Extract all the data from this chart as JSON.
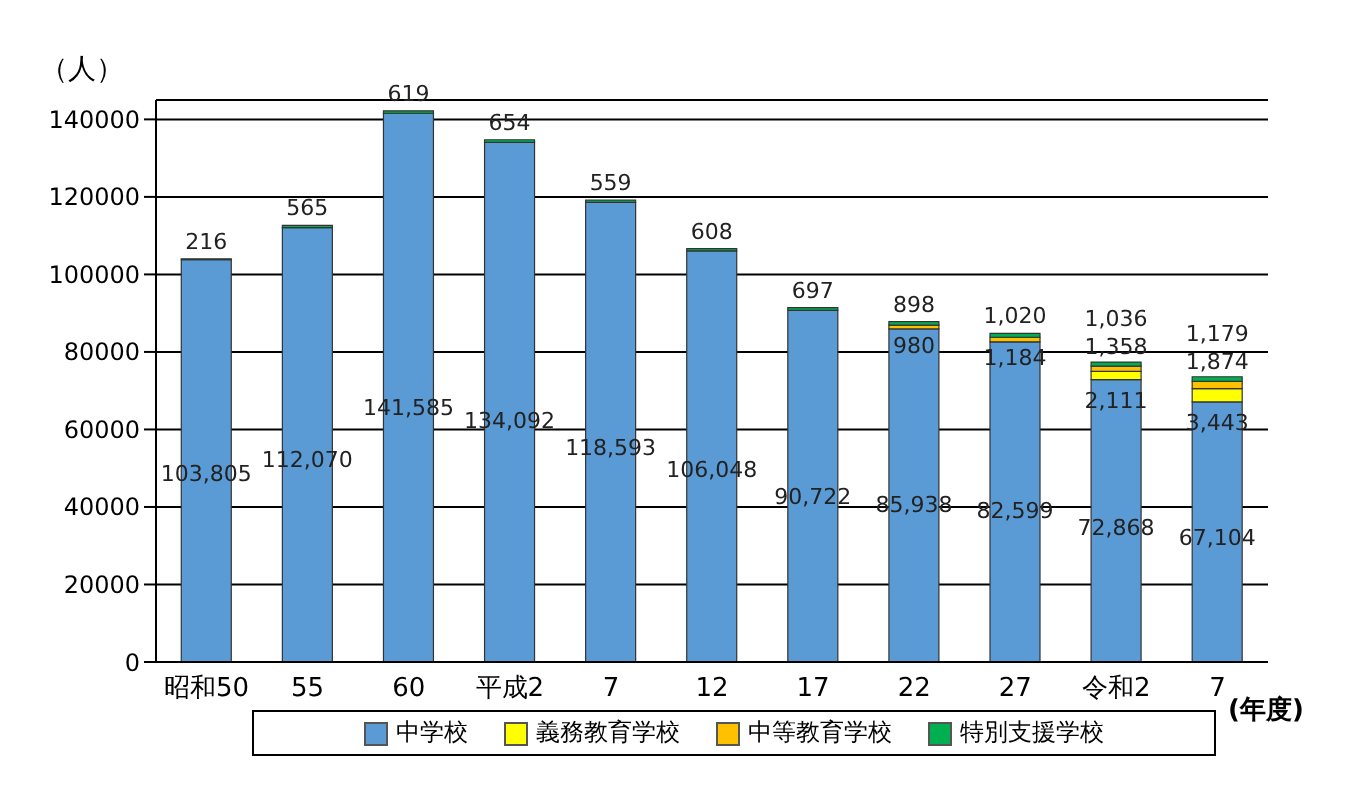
{
  "chart_data": {
    "type": "bar",
    "stacked": true,
    "ylabel": "（人）",
    "annotations": [
      "(年度)"
    ],
    "categories": [
      "昭和50",
      "55",
      "60",
      "平成2",
      "7",
      "12",
      "17",
      "22",
      "27",
      "令和2",
      "7"
    ],
    "series": [
      {
        "name": "中学校",
        "color": "#5b9bd5",
        "values": [
          103805,
          112070,
          141585,
          134092,
          118593,
          106048,
          90722,
          85938,
          82599,
          72868,
          67104
        ],
        "value_labels": [
          "103,805",
          "112,070",
          "141,585",
          "134,092",
          "118,593",
          "106,048",
          "90,722",
          "85,938",
          "82,599",
          "72,868",
          "67,104"
        ]
      },
      {
        "name": "義務教育学校",
        "color": "#ffff00",
        "values": [
          null,
          null,
          null,
          null,
          null,
          null,
          null,
          null,
          null,
          2111,
          3443
        ],
        "value_labels": [
          null,
          null,
          null,
          null,
          null,
          null,
          null,
          null,
          null,
          "2,111",
          "3,443"
        ]
      },
      {
        "name": "中等教育学校",
        "color": "#ffc000",
        "values": [
          null,
          null,
          null,
          null,
          null,
          null,
          null,
          980,
          1184,
          1358,
          1874
        ],
        "value_labels": [
          null,
          null,
          null,
          null,
          null,
          null,
          null,
          "980",
          "1,184",
          "1,358",
          "1,874"
        ]
      },
      {
        "name": "特別支援学校",
        "color": "#00b050",
        "values": [
          216,
          565,
          619,
          654,
          559,
          608,
          697,
          898,
          1020,
          1036,
          1179
        ],
        "value_labels": [
          "216",
          "565",
          "619",
          "654",
          "559",
          "608",
          "697",
          "898",
          "1,020",
          "1,036",
          "1,179"
        ]
      }
    ],
    "ylim": [
      0,
      145000
    ],
    "yticks": [
      0,
      20000,
      40000,
      60000,
      80000,
      100000,
      120000,
      140000
    ],
    "grid": "y",
    "legend": "bottom"
  }
}
